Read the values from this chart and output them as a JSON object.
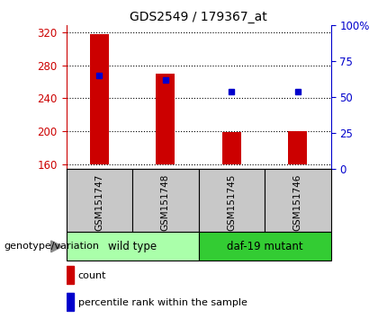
{
  "title": "GDS2549 / 179367_at",
  "samples": [
    "GSM151747",
    "GSM151748",
    "GSM151745",
    "GSM151746"
  ],
  "groups": [
    {
      "name": "wild type",
      "color": "#AAFFAA"
    },
    {
      "name": "daf-19 mutant",
      "color": "#33CC33"
    }
  ],
  "count_values": [
    318,
    270,
    199,
    200
  ],
  "percentile_values": [
    65,
    62,
    54,
    54
  ],
  "bar_bottom": 160,
  "ylim_left": [
    155,
    328
  ],
  "ylim_right": [
    0,
    100
  ],
  "left_ticks": [
    160,
    200,
    240,
    280,
    320
  ],
  "right_tick_labels": [
    "0",
    "25",
    "50",
    "75",
    "100%"
  ],
  "right_ticks": [
    0,
    25,
    50,
    75,
    100
  ],
  "bar_color": "#CC0000",
  "dot_color": "#0000CC",
  "axis_left_color": "#CC0000",
  "axis_right_color": "#0000CC",
  "xlabel_area_color": "#C8C8C8",
  "legend_count_label": "count",
  "legend_percentile_label": "percentile rank within the sample",
  "genotype_label": "genotype/variation"
}
